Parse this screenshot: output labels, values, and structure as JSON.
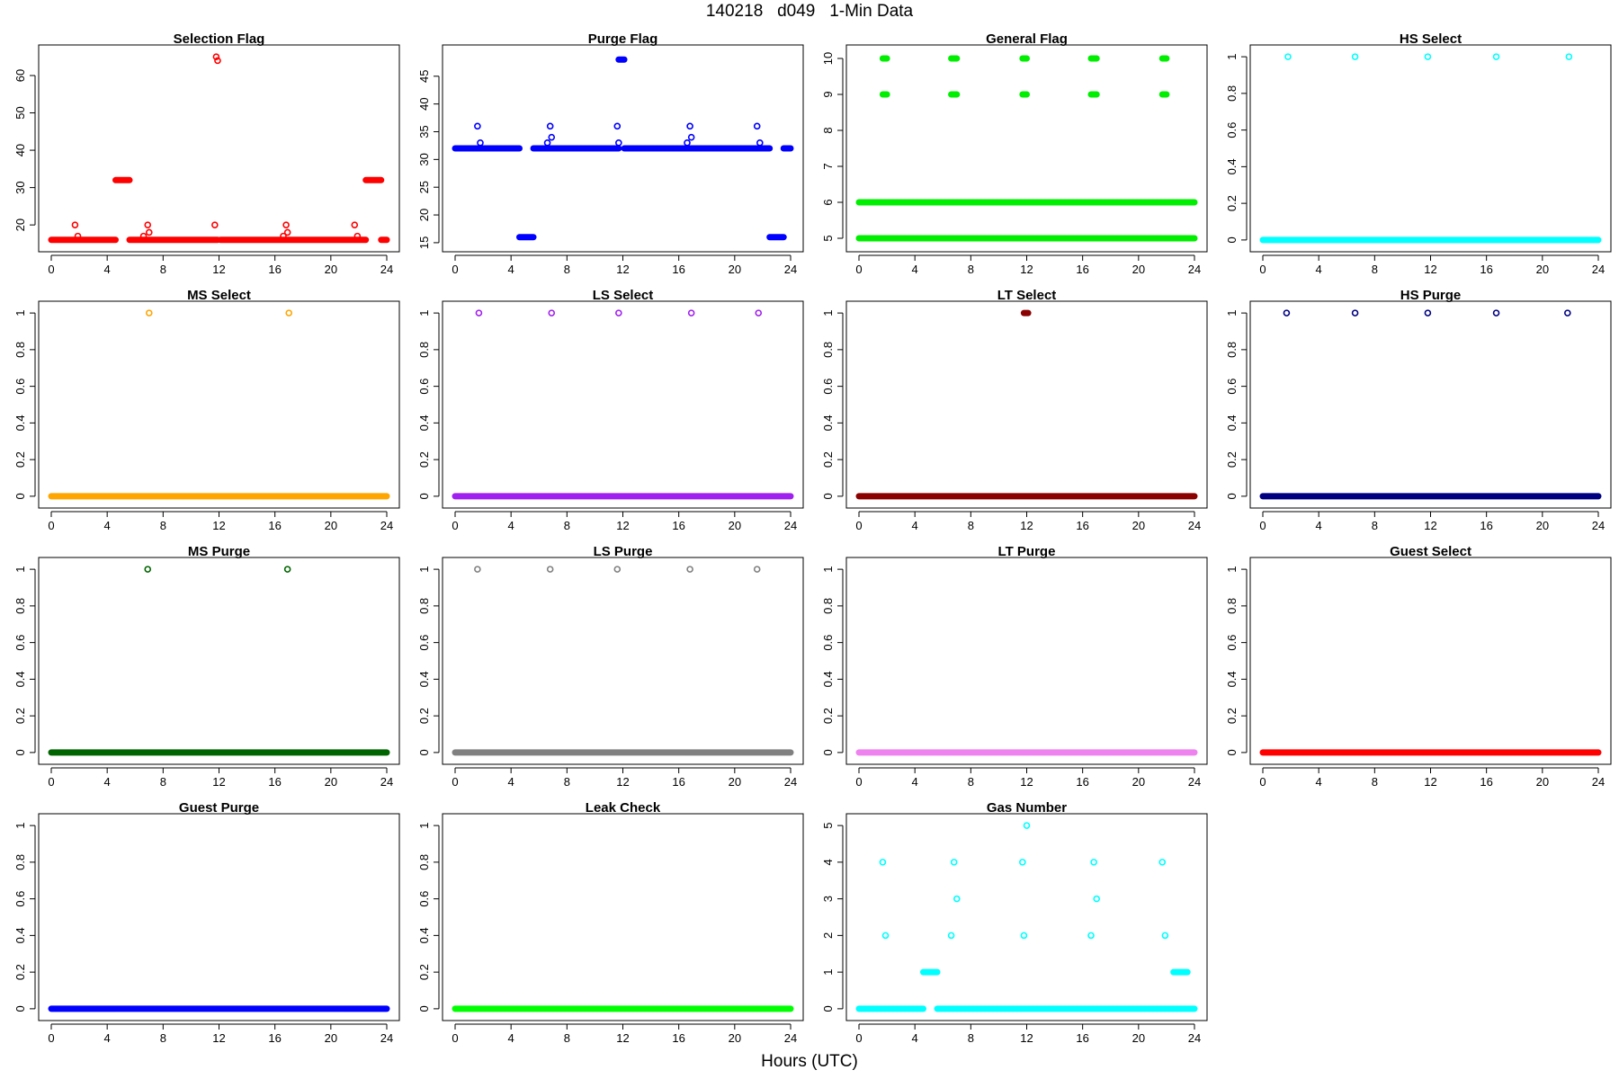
{
  "title": "140218   d049   1-Min Data",
  "xlabel": "Hours (UTC)",
  "chart_data": [
    {
      "type": "scatter",
      "title": "Selection Flag",
      "color": "#ff0000",
      "ylim": [
        14.5,
        66.5
      ],
      "yticks": [
        20,
        30,
        40,
        50,
        60
      ],
      "xticks": [
        0,
        4,
        8,
        12,
        16,
        20,
        24
      ],
      "xlim": [
        0,
        24
      ],
      "runs": [
        [
          0,
          4.6,
          16
        ],
        [
          4.6,
          5.6,
          32
        ],
        [
          5.6,
          11.9,
          16
        ],
        [
          12.1,
          22.5,
          16
        ],
        [
          22.5,
          23.6,
          32
        ],
        [
          23.6,
          24,
          16
        ]
      ],
      "points": [
        [
          1.7,
          20
        ],
        [
          1.9,
          17
        ],
        [
          6.6,
          17
        ],
        [
          6.9,
          20
        ],
        [
          7.0,
          18
        ],
        [
          11.7,
          20
        ],
        [
          11.8,
          65
        ],
        [
          11.9,
          64
        ],
        [
          16.6,
          17
        ],
        [
          16.8,
          20
        ],
        [
          16.9,
          18
        ],
        [
          21.7,
          20
        ],
        [
          21.9,
          17
        ]
      ]
    },
    {
      "type": "scatter",
      "title": "Purge Flag",
      "color": "#0000ff",
      "ylim": [
        14.5,
        49.5
      ],
      "yticks": [
        15,
        20,
        25,
        30,
        35,
        40,
        45
      ],
      "xticks": [
        0,
        4,
        8,
        12,
        16,
        20,
        24
      ],
      "xlim": [
        0,
        24
      ],
      "runs": [
        [
          0,
          4.6,
          32
        ],
        [
          4.6,
          5.6,
          16
        ],
        [
          5.6,
          11.7,
          32
        ],
        [
          11.7,
          12.1,
          48
        ],
        [
          12.1,
          22.5,
          32
        ],
        [
          22.5,
          23.5,
          16
        ],
        [
          23.5,
          24,
          32
        ]
      ],
      "points": [
        [
          1.6,
          36
        ],
        [
          1.8,
          33
        ],
        [
          6.6,
          33
        ],
        [
          6.8,
          36
        ],
        [
          6.9,
          34
        ],
        [
          11.6,
          36
        ],
        [
          11.7,
          33
        ],
        [
          16.6,
          33
        ],
        [
          16.8,
          36
        ],
        [
          16.9,
          34
        ],
        [
          21.6,
          36
        ],
        [
          21.8,
          33
        ]
      ]
    },
    {
      "type": "scatter",
      "title": "General Flag",
      "color": "#00ee00",
      "ylim": [
        4.8,
        10.2
      ],
      "yticks": [
        5,
        6,
        7,
        8,
        9,
        10
      ],
      "xticks": [
        0,
        4,
        8,
        12,
        16,
        20,
        24
      ],
      "xlim": [
        0,
        24
      ],
      "runs": [
        [
          0,
          24,
          5
        ],
        [
          0,
          24,
          6
        ],
        [
          1.7,
          2.0,
          9
        ],
        [
          1.7,
          2.0,
          10
        ],
        [
          6.6,
          7.0,
          9
        ],
        [
          6.6,
          7.0,
          10
        ],
        [
          11.7,
          12.0,
          9
        ],
        [
          11.7,
          12.0,
          10
        ],
        [
          16.6,
          17.0,
          9
        ],
        [
          16.6,
          17.0,
          10
        ],
        [
          21.7,
          22.0,
          9
        ],
        [
          21.7,
          22.0,
          10
        ]
      ],
      "points": []
    },
    {
      "type": "scatter",
      "title": "HS Select",
      "color": "#00ffff",
      "ylim": [
        -0.03,
        1.03
      ],
      "yticks": [
        0.0,
        0.2,
        0.4,
        0.6,
        0.8,
        1.0
      ],
      "xticks": [
        0,
        4,
        8,
        12,
        16,
        20,
        24
      ],
      "xlim": [
        0,
        24
      ],
      "runs": [
        [
          0,
          24,
          0
        ]
      ],
      "points": [
        [
          1.8,
          1
        ],
        [
          6.6,
          1
        ],
        [
          11.8,
          1
        ],
        [
          16.7,
          1
        ],
        [
          21.9,
          1
        ]
      ]
    },
    {
      "type": "scatter",
      "title": "MS Select",
      "color": "#ffa500",
      "ylim": [
        -0.03,
        1.03
      ],
      "yticks": [
        0.0,
        0.2,
        0.4,
        0.6,
        0.8,
        1.0
      ],
      "xticks": [
        0,
        4,
        8,
        12,
        16,
        20,
        24
      ],
      "xlim": [
        0,
        24
      ],
      "runs": [
        [
          0,
          24,
          0
        ]
      ],
      "points": [
        [
          7.0,
          1
        ],
        [
          17.0,
          1
        ]
      ]
    },
    {
      "type": "scatter",
      "title": "LS Select",
      "color": "#a020f0",
      "ylim": [
        -0.03,
        1.03
      ],
      "yticks": [
        0.0,
        0.2,
        0.4,
        0.6,
        0.8,
        1.0
      ],
      "xticks": [
        0,
        4,
        8,
        12,
        16,
        20,
        24
      ],
      "xlim": [
        0,
        24
      ],
      "runs": [
        [
          0,
          24,
          0
        ]
      ],
      "points": [
        [
          1.7,
          1
        ],
        [
          6.9,
          1
        ],
        [
          11.7,
          1
        ],
        [
          16.9,
          1
        ],
        [
          21.7,
          1
        ]
      ]
    },
    {
      "type": "scatter",
      "title": "LT Select",
      "color": "#8b0000",
      "ylim": [
        -0.03,
        1.03
      ],
      "yticks": [
        0.0,
        0.2,
        0.4,
        0.6,
        0.8,
        1.0
      ],
      "xticks": [
        0,
        4,
        8,
        12,
        16,
        20,
        24
      ],
      "xlim": [
        0,
        24
      ],
      "runs": [
        [
          0,
          24,
          0
        ],
        [
          11.8,
          12.1,
          1
        ]
      ],
      "points": []
    },
    {
      "type": "scatter",
      "title": "HS Purge",
      "color": "#000080",
      "ylim": [
        -0.03,
        1.03
      ],
      "yticks": [
        0.0,
        0.2,
        0.4,
        0.6,
        0.8,
        1.0
      ],
      "xticks": [
        0,
        4,
        8,
        12,
        16,
        20,
        24
      ],
      "xlim": [
        0,
        24
      ],
      "runs": [
        [
          0,
          24,
          0
        ]
      ],
      "points": [
        [
          1.7,
          1
        ],
        [
          6.6,
          1
        ],
        [
          11.8,
          1
        ],
        [
          16.7,
          1
        ],
        [
          21.8,
          1
        ]
      ]
    },
    {
      "type": "scatter",
      "title": "MS Purge",
      "color": "#006400",
      "ylim": [
        -0.03,
        1.03
      ],
      "yticks": [
        0.0,
        0.2,
        0.4,
        0.6,
        0.8,
        1.0
      ],
      "xticks": [
        0,
        4,
        8,
        12,
        16,
        20,
        24
      ],
      "xlim": [
        0,
        24
      ],
      "runs": [
        [
          0,
          24,
          0
        ]
      ],
      "points": [
        [
          6.9,
          1
        ],
        [
          16.9,
          1
        ]
      ]
    },
    {
      "type": "scatter",
      "title": "LS Purge",
      "color": "#808080",
      "ylim": [
        -0.03,
        1.03
      ],
      "yticks": [
        0.0,
        0.2,
        0.4,
        0.6,
        0.8,
        1.0
      ],
      "xticks": [
        0,
        4,
        8,
        12,
        16,
        20,
        24
      ],
      "xlim": [
        0,
        24
      ],
      "runs": [
        [
          0,
          24,
          0
        ]
      ],
      "points": [
        [
          1.6,
          1
        ],
        [
          6.8,
          1
        ],
        [
          11.6,
          1
        ],
        [
          16.8,
          1
        ],
        [
          21.6,
          1
        ]
      ]
    },
    {
      "type": "scatter",
      "title": "LT Purge",
      "color": "#ee82ee",
      "ylim": [
        -0.03,
        1.03
      ],
      "yticks": [
        0.0,
        0.2,
        0.4,
        0.6,
        0.8,
        1.0
      ],
      "xticks": [
        0,
        4,
        8,
        12,
        16,
        20,
        24
      ],
      "xlim": [
        0,
        24
      ],
      "runs": [
        [
          0,
          24,
          0
        ]
      ],
      "points": []
    },
    {
      "type": "scatter",
      "title": "Guest Select",
      "color": "#ff0000",
      "ylim": [
        -0.03,
        1.03
      ],
      "yticks": [
        0.0,
        0.2,
        0.4,
        0.6,
        0.8,
        1.0
      ],
      "xticks": [
        0,
        4,
        8,
        12,
        16,
        20,
        24
      ],
      "xlim": [
        0,
        24
      ],
      "runs": [
        [
          0,
          24,
          0
        ]
      ],
      "points": []
    },
    {
      "type": "scatter",
      "title": "Guest Purge",
      "color": "#0000ff",
      "ylim": [
        -0.03,
        1.03
      ],
      "yticks": [
        0.0,
        0.2,
        0.4,
        0.6,
        0.8,
        1.0
      ],
      "xticks": [
        0,
        4,
        8,
        12,
        16,
        20,
        24
      ],
      "xlim": [
        0,
        24
      ],
      "runs": [
        [
          0,
          24,
          0
        ]
      ],
      "points": []
    },
    {
      "type": "scatter",
      "title": "Leak Check",
      "color": "#00ff00",
      "ylim": [
        -0.03,
        1.03
      ],
      "yticks": [
        0.0,
        0.2,
        0.4,
        0.6,
        0.8,
        1.0
      ],
      "xticks": [
        0,
        4,
        8,
        12,
        16,
        20,
        24
      ],
      "xlim": [
        0,
        24
      ],
      "runs": [
        [
          0,
          24,
          0
        ]
      ],
      "points": []
    },
    {
      "type": "scatter",
      "title": "Gas Number",
      "color": "#00ffff",
      "ylim": [
        -0.15,
        5.15
      ],
      "yticks": [
        0,
        1,
        2,
        3,
        4,
        5
      ],
      "xticks": [
        0,
        4,
        8,
        12,
        16,
        20,
        24
      ],
      "xlim": [
        0,
        24
      ],
      "runs": [
        [
          0,
          4.6,
          0
        ],
        [
          4.6,
          5.6,
          1
        ],
        [
          5.6,
          24,
          0
        ],
        [
          22.5,
          23.5,
          1
        ]
      ],
      "points": [
        [
          1.7,
          4
        ],
        [
          1.9,
          2
        ],
        [
          6.6,
          2
        ],
        [
          6.8,
          4
        ],
        [
          7.0,
          3
        ],
        [
          11.7,
          4
        ],
        [
          11.8,
          2
        ],
        [
          12.0,
          5
        ],
        [
          16.6,
          2
        ],
        [
          16.8,
          4
        ],
        [
          17.0,
          3
        ],
        [
          21.7,
          4
        ],
        [
          21.9,
          2
        ]
      ]
    }
  ]
}
